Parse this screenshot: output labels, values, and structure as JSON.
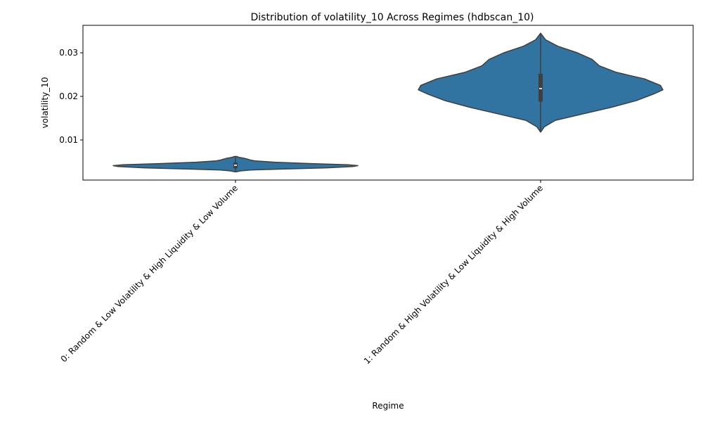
{
  "chart_data": {
    "type": "violin",
    "title": "Distribution of volatility_10 Across Regimes (hdbscan_10)",
    "xlabel": "Regime",
    "ylabel": "volatility_10",
    "categories": [
      "0: Random & Low Volatility & High Liquidity & Low Volume",
      "1: Random & High Volatility & Low Liquidity & High Volume"
    ],
    "ylim": [
      0.0008,
      0.0363
    ],
    "yticks": [
      0.01,
      0.02,
      0.03
    ],
    "ytick_labels": [
      "0.01",
      "0.02",
      "0.03"
    ],
    "grid": false,
    "colors": {
      "fill": "#3274a1",
      "edge": "#3f3f3f",
      "box": "#3f3f3f",
      "median": "#ffffff"
    },
    "violins": [
      {
        "category": "0: Random & Low Volatility & High Liquidity & Low Volume",
        "min": 0.0027,
        "q1": 0.0035,
        "median": 0.0042,
        "q3": 0.0048,
        "max": 0.0062,
        "density": [
          [
            0.0027,
            0.01
          ],
          [
            0.0029,
            0.04
          ],
          [
            0.0031,
            0.12
          ],
          [
            0.0033,
            0.35
          ],
          [
            0.0036,
            0.75
          ],
          [
            0.0039,
            0.96
          ],
          [
            0.0041,
            1.0
          ],
          [
            0.0043,
            0.92
          ],
          [
            0.0046,
            0.6
          ],
          [
            0.0049,
            0.32
          ],
          [
            0.0052,
            0.16
          ],
          [
            0.0054,
            0.12
          ],
          [
            0.0056,
            0.1
          ],
          [
            0.0058,
            0.07
          ],
          [
            0.006,
            0.03
          ],
          [
            0.0062,
            0.01
          ]
        ]
      },
      {
        "category": "1: Random & High Volatility & Low Liquidity & High Volume",
        "min": 0.0118,
        "q1": 0.0188,
        "median": 0.0218,
        "q3": 0.0252,
        "max": 0.0345,
        "density": [
          [
            0.0118,
            0.0
          ],
          [
            0.013,
            0.03
          ],
          [
            0.0145,
            0.12
          ],
          [
            0.016,
            0.35
          ],
          [
            0.0175,
            0.58
          ],
          [
            0.019,
            0.78
          ],
          [
            0.0205,
            0.92
          ],
          [
            0.0215,
            1.0
          ],
          [
            0.0225,
            0.98
          ],
          [
            0.024,
            0.85
          ],
          [
            0.0255,
            0.62
          ],
          [
            0.027,
            0.48
          ],
          [
            0.0285,
            0.42
          ],
          [
            0.03,
            0.3
          ],
          [
            0.0315,
            0.14
          ],
          [
            0.033,
            0.04
          ],
          [
            0.0345,
            0.0
          ]
        ]
      }
    ]
  }
}
